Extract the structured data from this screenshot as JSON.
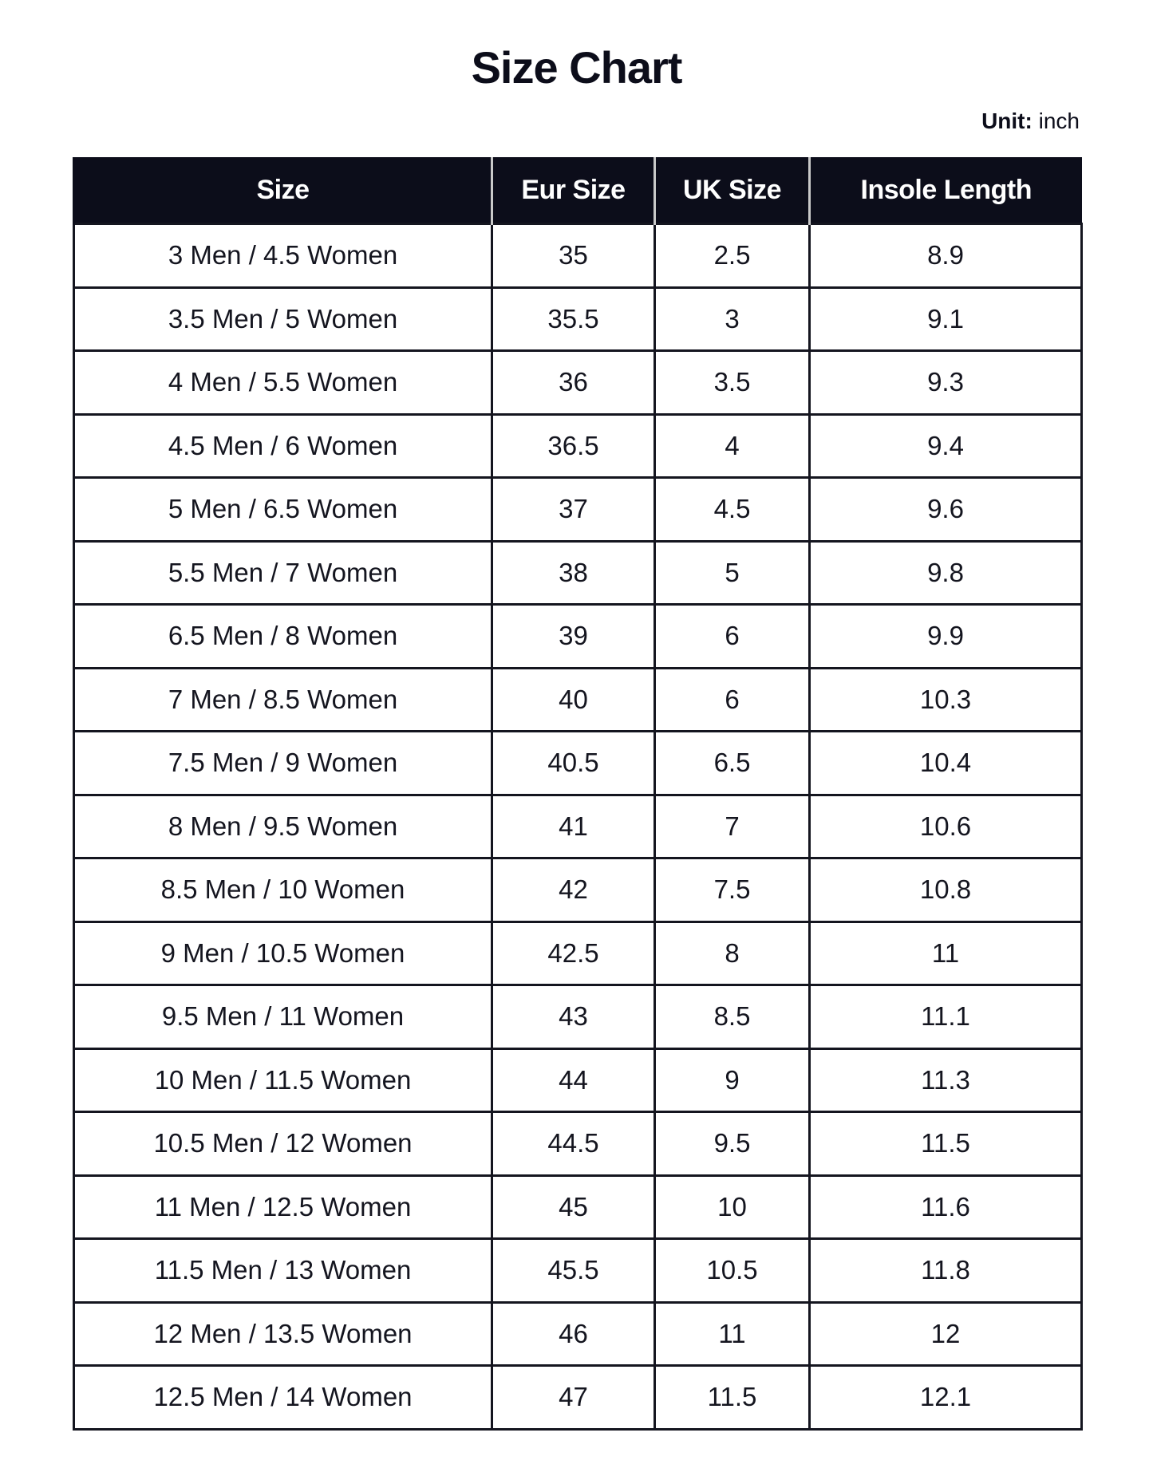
{
  "title": "Size Chart",
  "unit_label": "Unit:",
  "unit_value": "inch",
  "colors": {
    "header_bg": "#0c0d1a",
    "header_text": "#ffffff",
    "border": "#14151f"
  },
  "table": {
    "headers": [
      "Size",
      "Eur Size",
      "UK Size",
      "Insole Length"
    ],
    "rows": [
      [
        "3 Men / 4.5 Women",
        "35",
        "2.5",
        "8.9"
      ],
      [
        "3.5 Men / 5 Women",
        "35.5",
        "3",
        "9.1"
      ],
      [
        "4 Men / 5.5 Women",
        "36",
        "3.5",
        "9.3"
      ],
      [
        "4.5 Men / 6 Women",
        "36.5",
        "4",
        "9.4"
      ],
      [
        "5 Men / 6.5 Women",
        "37",
        "4.5",
        "9.6"
      ],
      [
        "5.5 Men / 7 Women",
        "38",
        "5",
        "9.8"
      ],
      [
        "6.5 Men / 8 Women",
        "39",
        "6",
        "9.9"
      ],
      [
        "7 Men / 8.5 Women",
        "40",
        "6",
        "10.3"
      ],
      [
        "7.5 Men / 9 Women",
        "40.5",
        "6.5",
        "10.4"
      ],
      [
        "8 Men / 9.5 Women",
        "41",
        "7",
        "10.6"
      ],
      [
        "8.5 Men / 10 Women",
        "42",
        "7.5",
        "10.8"
      ],
      [
        "9 Men / 10.5 Women",
        "42.5",
        "8",
        "11"
      ],
      [
        "9.5 Men / 11 Women",
        "43",
        "8.5",
        "11.1"
      ],
      [
        "10 Men / 11.5 Women",
        "44",
        "9",
        "11.3"
      ],
      [
        "10.5 Men / 12 Women",
        "44.5",
        "9.5",
        "11.5"
      ],
      [
        "11 Men / 12.5 Women",
        "45",
        "10",
        "11.6"
      ],
      [
        "11.5 Men / 13 Women",
        "45.5",
        "10.5",
        "11.8"
      ],
      [
        "12 Men / 13.5 Women",
        "46",
        "11",
        "12"
      ],
      [
        "12.5 Men / 14 Women",
        "47",
        "11.5",
        "12.1"
      ]
    ]
  }
}
